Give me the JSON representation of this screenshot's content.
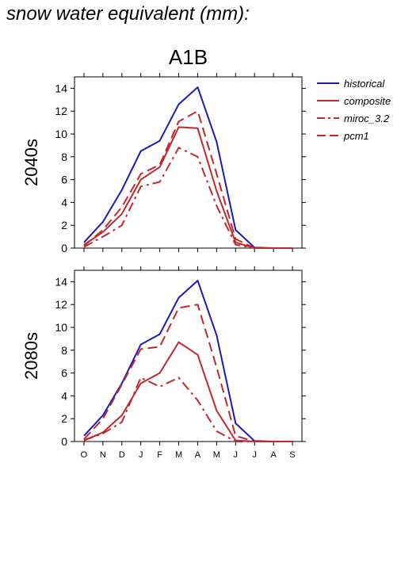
{
  "page_title": "snow water equivalent (mm):",
  "chart_data": [
    {
      "type": "line",
      "title": "A1B",
      "ylabel": "2040s",
      "xlabel": "",
      "categories": [
        "O",
        "N",
        "D",
        "J",
        "F",
        "M",
        "A",
        "M",
        "J",
        "J",
        "A",
        "S"
      ],
      "ylim": [
        0,
        15
      ],
      "yticks": [
        0,
        2,
        4,
        6,
        8,
        10,
        12,
        14
      ],
      "grid": false,
      "legend_position": "right",
      "series": [
        {
          "name": "historical",
          "color": "#1a1ab8",
          "dash": "solid",
          "values": [
            0.5,
            2.3,
            5.1,
            8.5,
            9.4,
            12.6,
            14.1,
            9.3,
            1.6,
            0.05,
            0.0,
            0.0
          ]
        },
        {
          "name": "composite",
          "color": "#c0282d",
          "dash": "solid",
          "values": [
            0.3,
            1.4,
            3.0,
            6.0,
            7.1,
            10.6,
            10.5,
            5.0,
            0.5,
            0.0,
            0.0,
            0.0
          ]
        },
        {
          "name": "miroc_3.2",
          "color": "#c0282d",
          "dash": "dashdot",
          "values": [
            0.1,
            1.0,
            2.0,
            5.4,
            5.8,
            8.8,
            8.0,
            3.7,
            0.3,
            0.0,
            0.0,
            0.0
          ]
        },
        {
          "name": "pcm1",
          "color": "#c0282d",
          "dash": "dash",
          "values": [
            0.2,
            1.6,
            3.6,
            6.5,
            7.3,
            11.1,
            12.0,
            6.5,
            0.8,
            0.0,
            0.0,
            0.0
          ]
        }
      ]
    },
    {
      "type": "line",
      "title": "",
      "ylabel": "2080s",
      "xlabel": "",
      "categories": [
        "O",
        "N",
        "D",
        "J",
        "F",
        "M",
        "A",
        "M",
        "J",
        "J",
        "A",
        "S"
      ],
      "ylim": [
        0,
        15
      ],
      "yticks": [
        0,
        2,
        4,
        6,
        8,
        10,
        12,
        14
      ],
      "grid": false,
      "series": [
        {
          "name": "historical",
          "color": "#1a1ab8",
          "dash": "solid",
          "values": [
            0.5,
            2.3,
            5.1,
            8.5,
            9.4,
            12.6,
            14.1,
            9.3,
            1.6,
            0.05,
            0.0,
            0.0
          ]
        },
        {
          "name": "composite",
          "color": "#c0282d",
          "dash": "solid",
          "values": [
            0.1,
            0.8,
            2.3,
            5.1,
            6.0,
            8.7,
            7.6,
            2.7,
            0.1,
            0.0,
            0.0,
            0.0
          ]
        },
        {
          "name": "miroc_3.2",
          "color": "#c0282d",
          "dash": "dashdot",
          "values": [
            0.1,
            0.7,
            1.7,
            5.6,
            4.8,
            5.6,
            3.6,
            0.9,
            0.0,
            0.0,
            0.0,
            0.0
          ]
        },
        {
          "name": "pcm1",
          "color": "#c0282d",
          "dash": "dash",
          "values": [
            0.2,
            2.0,
            5.0,
            8.1,
            8.3,
            11.7,
            12.0,
            6.5,
            0.5,
            0.0,
            0.0,
            0.0
          ]
        }
      ]
    }
  ]
}
